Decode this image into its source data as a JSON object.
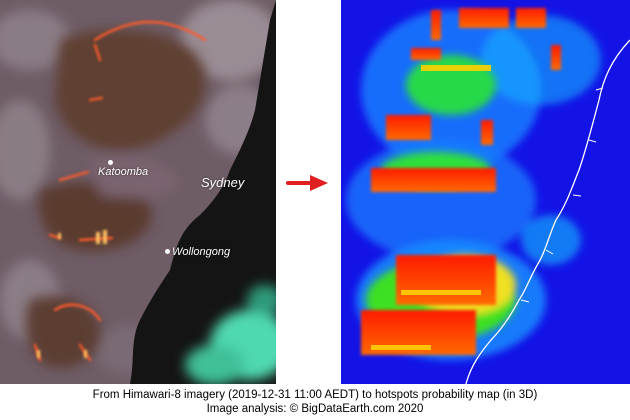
{
  "left_map": {
    "places": {
      "katoomba": "Katoomba",
      "sydney": "Sydney",
      "wollongong": "Wollongong"
    },
    "colors": {
      "land": "#6b5a63",
      "burn": "#5a3b2e",
      "ocean": "#111111",
      "smoke": "#52d8b0",
      "fire": "#ff5a2a"
    }
  },
  "arrow": {
    "icon": "arrow-right-icon",
    "color": "#e02020"
  },
  "right_map": {
    "colors": {
      "background": "#1010e0",
      "low": "#1a8cff",
      "mid": "#27e03a",
      "high": "#ff1a00",
      "coastline": "#ffffff"
    }
  },
  "caption": {
    "line1": "From Himawari-8 imagery (2019-12-31 11:00 AEDT) to hotspots probability map (in 3D)",
    "line2": "Image analysis: © BigDataEarth.com 2020"
  }
}
